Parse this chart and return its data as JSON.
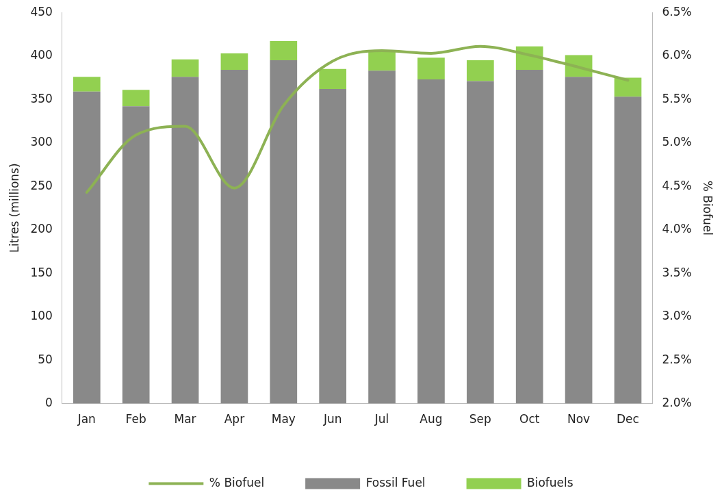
{
  "chart_data": {
    "type": "bar",
    "stacked": true,
    "ylabel": "Litres (millions)",
    "y2label": "% Biofuel",
    "categories": [
      "Jan",
      "Feb",
      "Mar",
      "Apr",
      "May",
      "Jun",
      "Jul",
      "Aug",
      "Sep",
      "Oct",
      "Nov",
      "Dec"
    ],
    "series": [
      {
        "name": "Fossil Fuel",
        "color": "#898989",
        "values": [
          359,
          342,
          376,
          384,
          395,
          362,
          383,
          373,
          371,
          384,
          376,
          353
        ]
      },
      {
        "name": "Biofuels",
        "color": "#92d050",
        "values": [
          17,
          19,
          20,
          19,
          22,
          23,
          22,
          25,
          24,
          27,
          25,
          22
        ]
      },
      {
        "name": "% Biofuel",
        "type": "line",
        "axis": "y2",
        "color": "#8db254",
        "marker": "none",
        "line_style": "solid",
        "values": [
          4.43,
          5.09,
          5.19,
          4.48,
          5.43,
          5.94,
          6.06,
          6.03,
          6.11,
          6.01,
          5.87,
          5.72
        ]
      }
    ],
    "ylim": [
      0,
      450
    ],
    "yticks": [
      0,
      50,
      100,
      150,
      200,
      250,
      300,
      350,
      400,
      450
    ],
    "y2lim": [
      2,
      6.5
    ],
    "y2ticks": [
      {
        "value": 2,
        "label": "2.0%"
      },
      {
        "value": 2.5,
        "label": "2.5%"
      },
      {
        "value": 3,
        "label": "3.0%"
      },
      {
        "value": 3.5,
        "label": "3.5%"
      },
      {
        "value": 4,
        "label": "4.0%"
      },
      {
        "value": 4.5,
        "label": "4.5%"
      },
      {
        "value": 5,
        "label": "5.0%"
      },
      {
        "value": 5.5,
        "label": "5.5%"
      },
      {
        "value": 6,
        "label": "6.0%"
      },
      {
        "value": 6.5,
        "label": "6.5%"
      }
    ],
    "grid": false,
    "legend": "bottom"
  }
}
